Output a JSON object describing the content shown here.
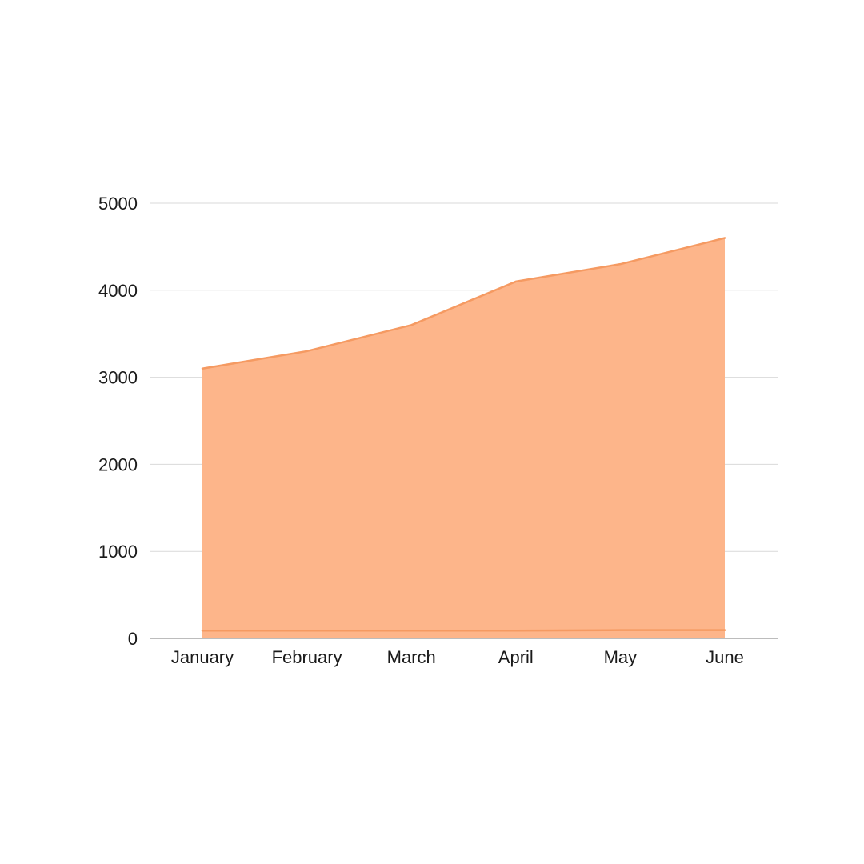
{
  "chart_data": {
    "type": "area",
    "categories": [
      "January",
      "February",
      "March",
      "April",
      "May",
      "June"
    ],
    "series": [
      {
        "values": [
          3100,
          3300,
          3600,
          4100,
          4300,
          4600
        ],
        "color": "#fdb58a",
        "line_color": "#f59a62"
      },
      {
        "values": [
          90,
          90,
          90,
          90,
          95,
          95
        ],
        "color": "#fdb58a",
        "line_color": "#f59a62"
      }
    ],
    "yticks": [
      "0",
      "1000",
      "2000",
      "3000",
      "4000",
      "5000"
    ],
    "ylim": [
      0,
      5000
    ],
    "grid": true,
    "gridline_color": "#d9d9d9",
    "axis_color": "#a6a6a6"
  }
}
